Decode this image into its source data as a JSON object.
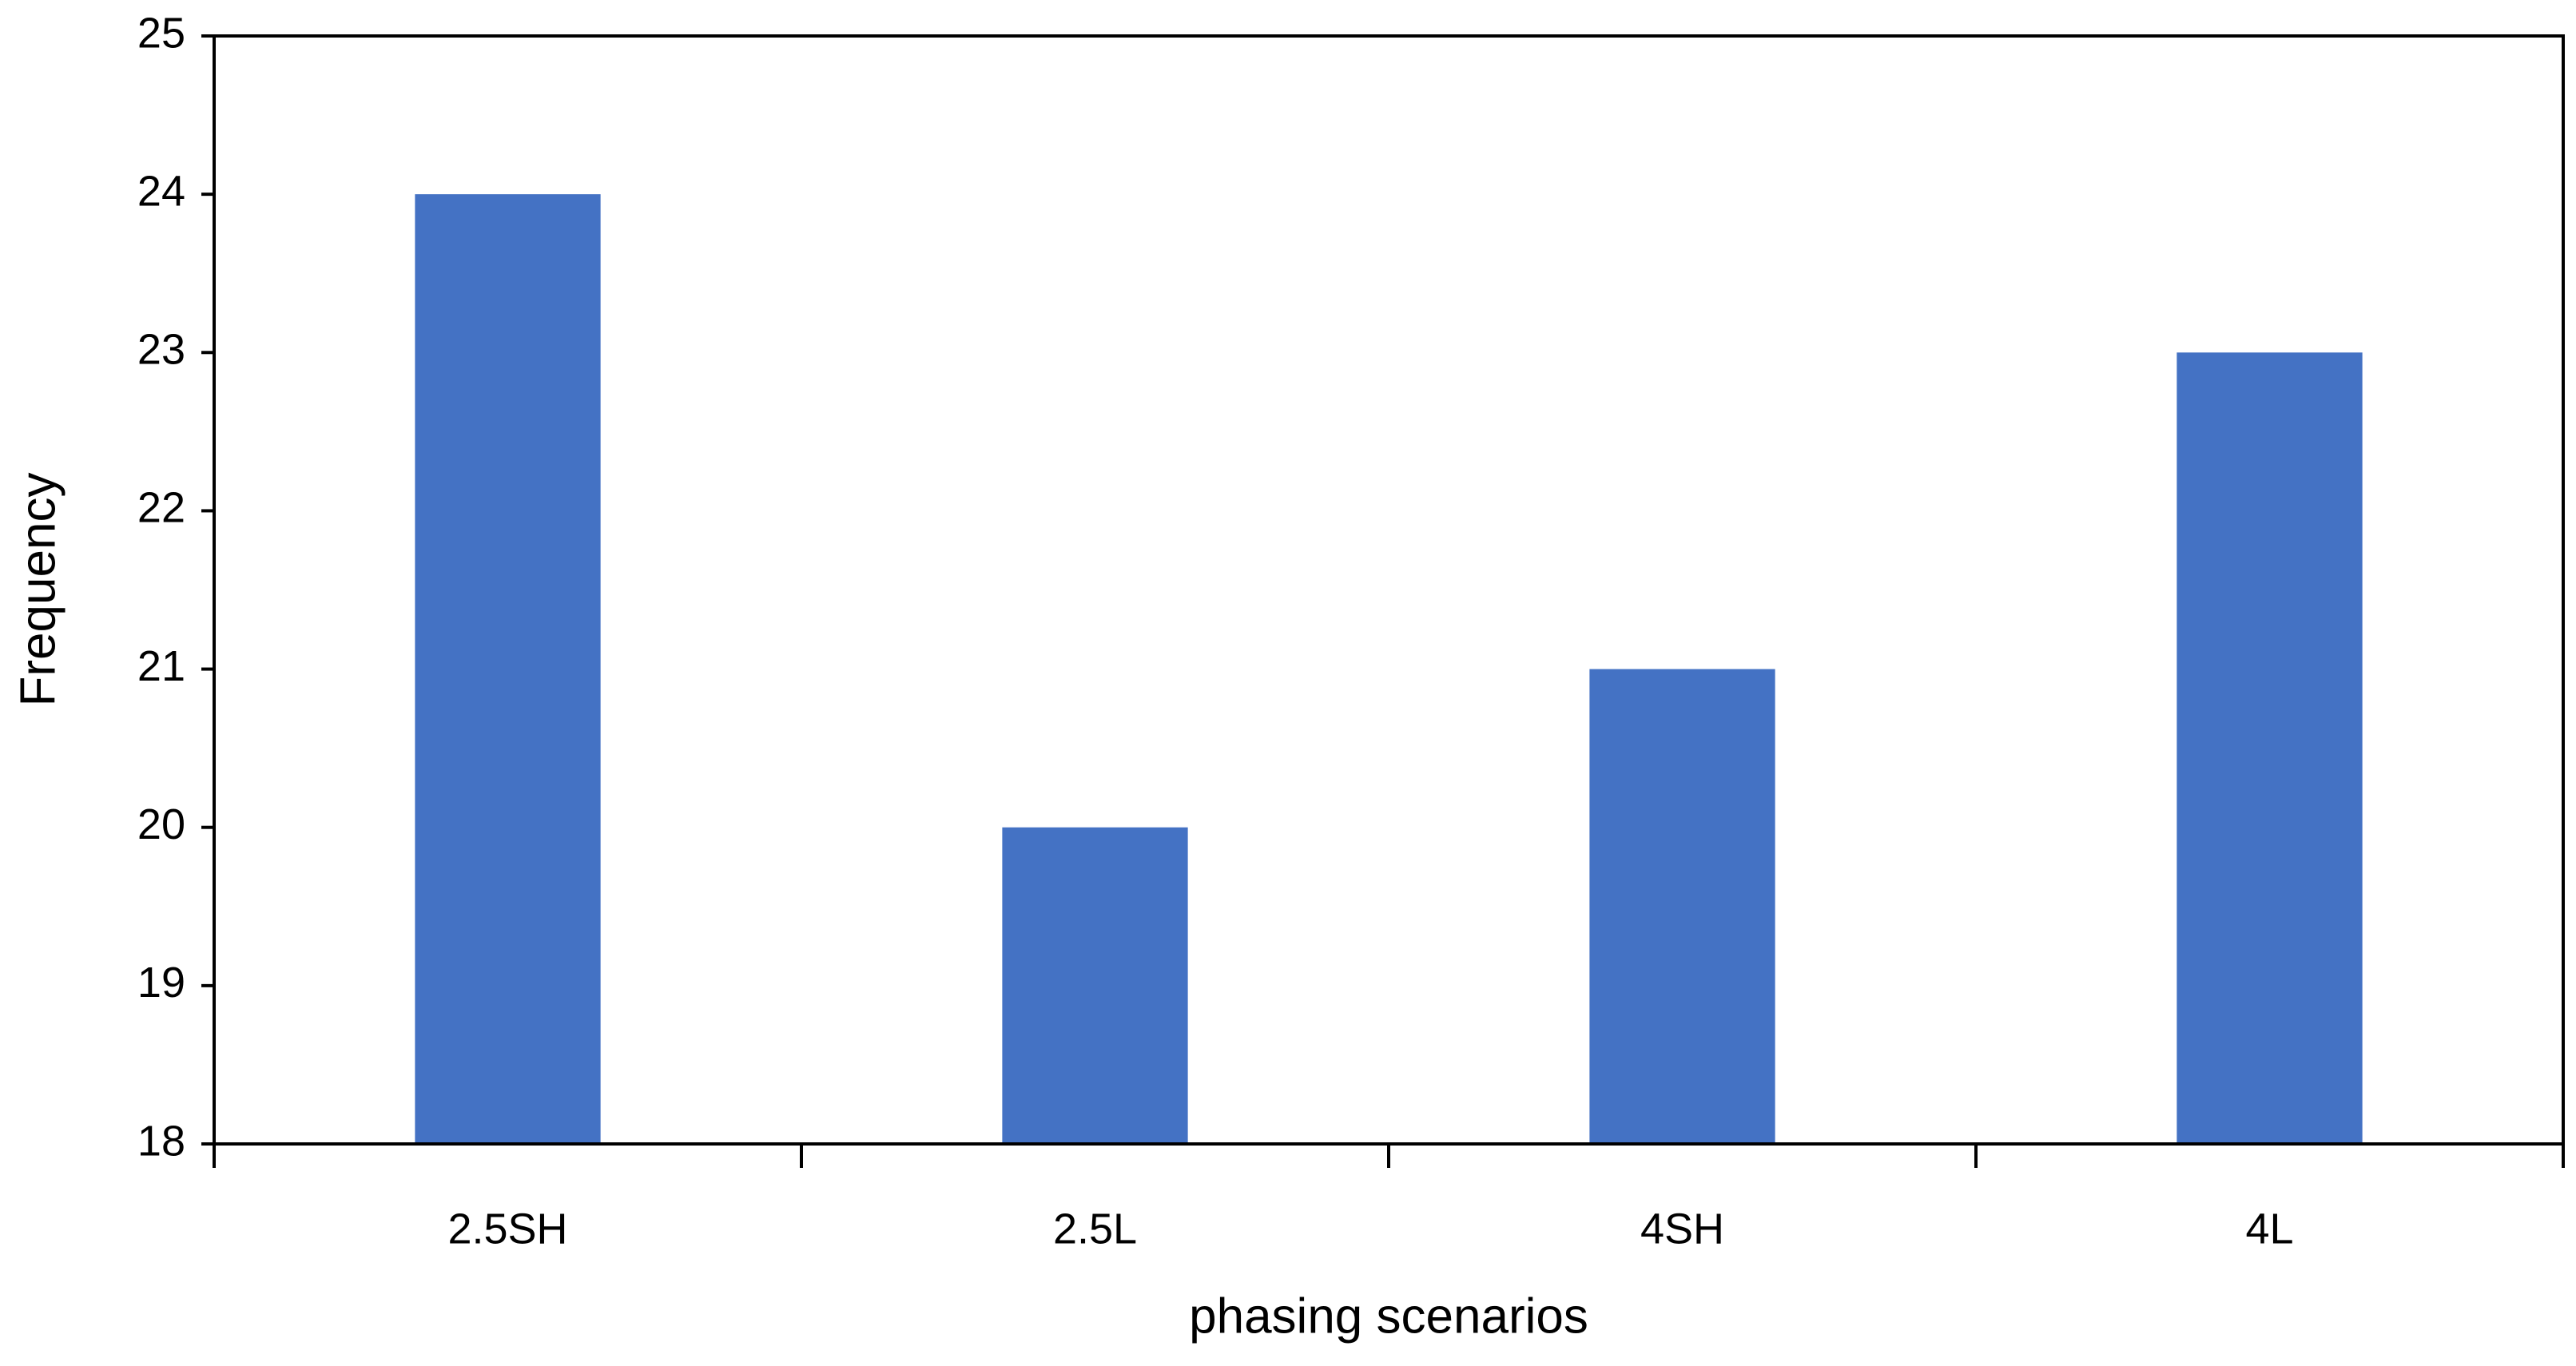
{
  "chart_data": {
    "type": "bar",
    "x_label": "phasing scenarios",
    "y_label": "Frequency",
    "categories": [
      "2.5SH",
      "2.5L",
      "4SH",
      "4L"
    ],
    "values": [
      24,
      20,
      21,
      23
    ],
    "color": "#4472c4",
    "ylim": [
      18,
      25
    ],
    "yticks": [
      18,
      19,
      20,
      21,
      22,
      23,
      24,
      25
    ],
    "grid": false
  }
}
